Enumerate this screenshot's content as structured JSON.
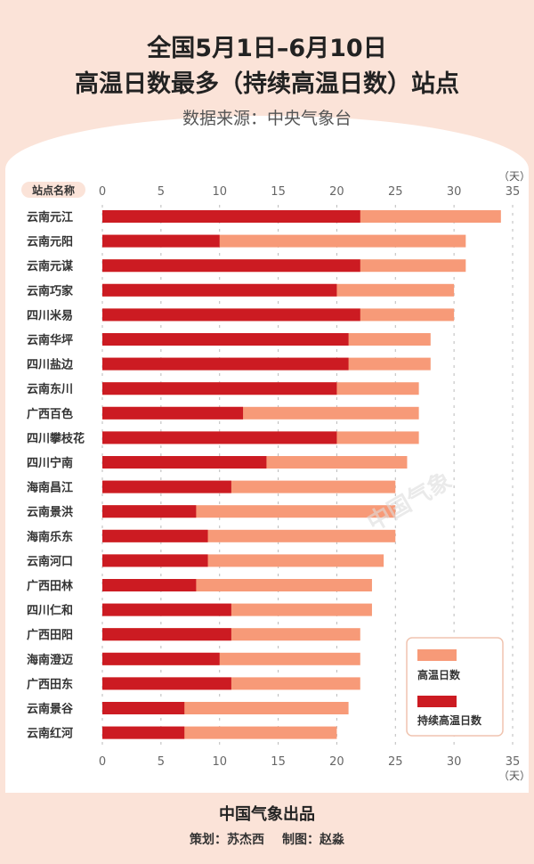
{
  "title_line1": "全国5月1日–6月10日",
  "title_line2": "高温日数最多（持续高温日数）站点",
  "subtitle": "数据来源：中央气象台",
  "footer": {
    "publisher": "中国气象出品",
    "planner": "策划：苏杰西",
    "designer": "制图：赵淼"
  },
  "watermark": "中国气象",
  "chart_data": {
    "type": "bar",
    "orientation": "horizontal",
    "category_header": "站点名称",
    "unit": "（天）",
    "xlim": [
      0,
      35
    ],
    "ticks": [
      0,
      5,
      10,
      15,
      20,
      25,
      30,
      35
    ],
    "grid": true,
    "legend_position": "bottom-right",
    "categories": [
      "云南元江",
      "云南元阳",
      "云南元谋",
      "云南巧家",
      "四川米易",
      "云南华坪",
      "四川盐边",
      "云南东川",
      "广西百色",
      "四川攀枝花",
      "四川宁南",
      "海南昌江",
      "云南景洪",
      "海南乐东",
      "云南河口",
      "广西田林",
      "四川仁和",
      "广西田阳",
      "海南澄迈",
      "广西田东",
      "云南景谷",
      "云南红河"
    ],
    "series": [
      {
        "name": "高温日数",
        "color": "#f79a78",
        "values": [
          34,
          31,
          31,
          30,
          30,
          28,
          28,
          27,
          27,
          27,
          26,
          25,
          25,
          25,
          24,
          23,
          23,
          22,
          22,
          22,
          21,
          20
        ]
      },
      {
        "name": "持续高温日数",
        "color": "#cc1b22",
        "values": [
          22,
          10,
          22,
          20,
          22,
          21,
          21,
          20,
          12,
          20,
          14,
          11,
          8,
          9,
          9,
          8,
          11,
          11,
          10,
          11,
          7,
          7
        ]
      }
    ]
  }
}
